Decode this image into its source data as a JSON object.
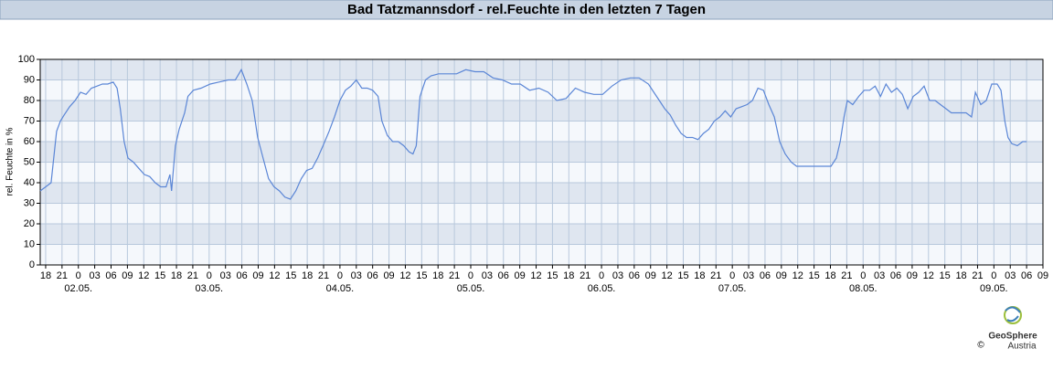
{
  "chart_data": {
    "type": "line",
    "title": "Bad Tatzmannsdorf - rel.Feuchte in den letzten 7 Tagen",
    "y_label": "rel. Feuchte in %",
    "xlim": [
      17,
      201
    ],
    "ylim": [
      0,
      100
    ],
    "yticks": [
      0,
      10,
      20,
      30,
      40,
      50,
      60,
      70,
      80,
      90,
      100
    ],
    "xticks": [
      {
        "value": 18,
        "label": "18"
      },
      {
        "value": 21,
        "label": "21"
      },
      {
        "value": 24,
        "label": "0"
      },
      {
        "value": 27,
        "label": "03"
      },
      {
        "value": 30,
        "label": "06"
      },
      {
        "value": 33,
        "label": "09"
      },
      {
        "value": 36,
        "label": "12"
      },
      {
        "value": 39,
        "label": "15"
      },
      {
        "value": 42,
        "label": "18"
      },
      {
        "value": 45,
        "label": "21"
      },
      {
        "value": 48,
        "label": "0"
      },
      {
        "value": 51,
        "label": "03"
      },
      {
        "value": 54,
        "label": "06"
      },
      {
        "value": 57,
        "label": "09"
      },
      {
        "value": 60,
        "label": "12"
      },
      {
        "value": 63,
        "label": "15"
      },
      {
        "value": 66,
        "label": "18"
      },
      {
        "value": 69,
        "label": "21"
      },
      {
        "value": 72,
        "label": "0"
      },
      {
        "value": 75,
        "label": "03"
      },
      {
        "value": 78,
        "label": "06"
      },
      {
        "value": 81,
        "label": "09"
      },
      {
        "value": 84,
        "label": "12"
      },
      {
        "value": 87,
        "label": "15"
      },
      {
        "value": 90,
        "label": "18"
      },
      {
        "value": 93,
        "label": "21"
      },
      {
        "value": 96,
        "label": "0"
      },
      {
        "value": 99,
        "label": "03"
      },
      {
        "value": 102,
        "label": "06"
      },
      {
        "value": 105,
        "label": "09"
      },
      {
        "value": 108,
        "label": "12"
      },
      {
        "value": 111,
        "label": "15"
      },
      {
        "value": 114,
        "label": "18"
      },
      {
        "value": 117,
        "label": "21"
      },
      {
        "value": 120,
        "label": "0"
      },
      {
        "value": 123,
        "label": "03"
      },
      {
        "value": 126,
        "label": "06"
      },
      {
        "value": 129,
        "label": "09"
      },
      {
        "value": 132,
        "label": "12"
      },
      {
        "value": 135,
        "label": "15"
      },
      {
        "value": 138,
        "label": "18"
      },
      {
        "value": 141,
        "label": "21"
      },
      {
        "value": 144,
        "label": "0"
      },
      {
        "value": 147,
        "label": "03"
      },
      {
        "value": 150,
        "label": "06"
      },
      {
        "value": 153,
        "label": "09"
      },
      {
        "value": 156,
        "label": "12"
      },
      {
        "value": 159,
        "label": "15"
      },
      {
        "value": 162,
        "label": "18"
      },
      {
        "value": 165,
        "label": "21"
      },
      {
        "value": 168,
        "label": "0"
      },
      {
        "value": 171,
        "label": "03"
      },
      {
        "value": 174,
        "label": "06"
      },
      {
        "value": 177,
        "label": "09"
      },
      {
        "value": 180,
        "label": "12"
      },
      {
        "value": 183,
        "label": "15"
      },
      {
        "value": 186,
        "label": "18"
      },
      {
        "value": 189,
        "label": "21"
      },
      {
        "value": 192,
        "label": "0"
      },
      {
        "value": 195,
        "label": "03"
      },
      {
        "value": 198,
        "label": "06"
      },
      {
        "value": 201,
        "label": "09"
      }
    ],
    "date_ticks": [
      {
        "value": 24,
        "label": "02.05."
      },
      {
        "value": 48,
        "label": "03.05."
      },
      {
        "value": 72,
        "label": "04.05."
      },
      {
        "value": 96,
        "label": "05.05."
      },
      {
        "value": 120,
        "label": "06.05."
      },
      {
        "value": 144,
        "label": "07.05."
      },
      {
        "value": 168,
        "label": "08.05."
      },
      {
        "value": 192,
        "label": "09.05."
      }
    ],
    "grid": true,
    "color": "#5b86d6",
    "x": [
      17.0,
      18.0,
      19.0,
      20.0,
      20.7,
      21.4,
      22.4,
      23.4,
      24.4,
      25.4,
      26.4,
      27.4,
      28.4,
      29.4,
      30.4,
      31.1,
      31.7,
      32.4,
      33.1,
      34.1,
      35.1,
      36.1,
      37.1,
      38.1,
      39.1,
      40.1,
      40.8,
      41.1,
      41.8,
      42.5,
      43.5,
      44.1,
      45.1,
      46.5,
      48.2,
      49.8,
      51.5,
      52.8,
      53.9,
      54.9,
      55.9,
      56.9,
      57.9,
      58.9,
      59.9,
      60.9,
      61.9,
      62.9,
      63.9,
      64.9,
      65.9,
      66.9,
      67.9,
      68.9,
      70.0,
      71.0,
      72.0,
      73.0,
      74.0,
      75.0,
      76.0,
      77.0,
      78.0,
      79.0,
      79.7,
      80.7,
      81.7,
      82.7,
      83.7,
      84.7,
      85.4,
      86.0,
      86.7,
      87.7,
      88.7,
      90.1,
      91.7,
      93.4,
      95.1,
      96.8,
      98.4,
      100.1,
      101.8,
      103.5,
      105.1,
      106.8,
      108.5,
      110.2,
      111.8,
      113.5,
      115.2,
      116.9,
      118.6,
      120.2,
      121.9,
      123.6,
      125.3,
      126.9,
      128.6,
      129.6,
      130.6,
      131.6,
      132.6,
      133.6,
      134.6,
      135.6,
      136.7,
      137.7,
      138.7,
      139.7,
      140.7,
      141.7,
      142.7,
      143.7,
      144.7,
      145.7,
      146.7,
      147.7,
      148.7,
      149.7,
      150.7,
      151.7,
      152.7,
      153.7,
      154.8,
      155.8,
      157.1,
      158.8,
      160.5,
      162.1,
      163.1,
      163.8,
      164.5,
      165.1,
      166.1,
      167.2,
      168.2,
      169.2,
      170.2,
      171.2,
      172.2,
      173.2,
      174.2,
      175.2,
      176.2,
      177.2,
      178.2,
      179.2,
      180.2,
      181.2,
      182.2,
      183.2,
      184.2,
      185.6,
      186.9,
      187.9,
      188.6,
      189.6,
      190.6,
      191.6,
      192.6,
      193.3,
      194.0,
      194.6,
      195.3,
      196.3,
      197.3,
      198.0
    ],
    "values": [
      36,
      38,
      40,
      65,
      70,
      73,
      77,
      80,
      84,
      83,
      86,
      87,
      88,
      88,
      89,
      86,
      76,
      60,
      52,
      50,
      47,
      44,
      43,
      40,
      38,
      38,
      44,
      36,
      58,
      66,
      74,
      82,
      85,
      86,
      88,
      89,
      90,
      90,
      95,
      88,
      80,
      62,
      52,
      42,
      38,
      36,
      33,
      32,
      36,
      42,
      46,
      47,
      52,
      58,
      65,
      72,
      80,
      85,
      87,
      90,
      86,
      86,
      85,
      82,
      70,
      63,
      60,
      60,
      58,
      55,
      54,
      58,
      82,
      90,
      92,
      93,
      93,
      93,
      95,
      94,
      94,
      91,
      90,
      88,
      88,
      85,
      86,
      84,
      80,
      81,
      86,
      84,
      83,
      83,
      87,
      90,
      91,
      91,
      88,
      84,
      80,
      76,
      73,
      68,
      64,
      62,
      62,
      61,
      64,
      66,
      70,
      72,
      75,
      72,
      76,
      77,
      78,
      80,
      86,
      85,
      78,
      72,
      60,
      54,
      50,
      48,
      48,
      48,
      48,
      48,
      52,
      60,
      72,
      80,
      78,
      82,
      85,
      85,
      87,
      82,
      88,
      84,
      86,
      83,
      76,
      82,
      84,
      87,
      80,
      80,
      78,
      76,
      74,
      74,
      74,
      72,
      84,
      78,
      80,
      88,
      88,
      85,
      70,
      62,
      59,
      58,
      60,
      60
    ]
  },
  "logo": {
    "name": "GeoSphere",
    "sub": "Austria",
    "copyright": "©"
  }
}
